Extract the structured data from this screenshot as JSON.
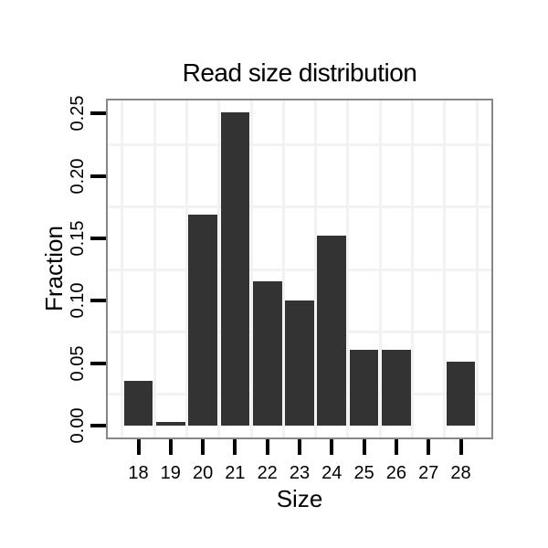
{
  "chart_data": {
    "type": "bar",
    "title": "Read size distribution",
    "xlabel": "Size",
    "ylabel": "Fraction",
    "categories": [
      18,
      19,
      20,
      21,
      22,
      23,
      24,
      25,
      26,
      27,
      28
    ],
    "values": [
      0.036,
      0.003,
      0.169,
      0.251,
      0.116,
      0.1,
      0.152,
      0.061,
      0.061,
      0.0,
      0.051
    ],
    "bar_width": 0.9,
    "xlim": [
      17.05,
      28.95
    ],
    "ylim": [
      -0.0095,
      0.2605
    ],
    "x_tick_labels": [
      "18",
      "19",
      "20",
      "21",
      "22",
      "23",
      "24",
      "25",
      "26",
      "27",
      "28"
    ],
    "y_ticks": [
      0.0,
      0.05,
      0.1,
      0.15,
      0.2,
      0.25
    ],
    "y_tick_labels": [
      "0.00",
      "0.05",
      "0.10",
      "0.15",
      "0.20",
      "0.25"
    ],
    "grid": {
      "vertical": [
        17.5,
        18.5,
        19.5,
        20.5,
        21.5,
        22.5,
        23.5,
        24.5,
        25.5,
        26.5,
        27.5,
        28.5
      ],
      "horizontal": [
        0.025,
        0.075,
        0.125,
        0.175,
        0.225
      ],
      "on": true
    },
    "legend": "none",
    "colors": {
      "bar_fill": "#333333",
      "panel_border": "#878787",
      "grid_line": "#f2f2f2",
      "tick_mark": "#000000",
      "text": "#000000",
      "background": "#ffffff"
    }
  }
}
